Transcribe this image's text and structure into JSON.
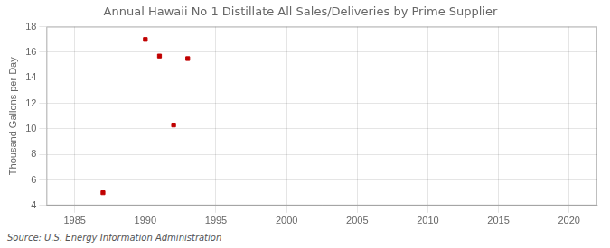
{
  "chart_data": {
    "type": "scatter",
    "title": "Annual Hawaii No 1 Distillate All Sales/Deliveries by Prime Supplier",
    "ylabel": "Thousand Gallons per Day",
    "source": "Source: U.S. Energy Information Administration",
    "x": [
      1987,
      1990,
      1991,
      1992,
      1993
    ],
    "values": [
      5.0,
      17.0,
      15.7,
      10.3,
      15.5
    ],
    "color": "#c00000",
    "marker": "square",
    "xlim": [
      1983,
      2022
    ],
    "ylim": [
      4,
      18
    ],
    "xticks": [
      1985,
      1990,
      1995,
      2000,
      2005,
      2010,
      2015,
      2020
    ],
    "yticks": [
      4,
      6,
      8,
      10,
      12,
      14,
      16,
      18
    ],
    "grid": true
  }
}
